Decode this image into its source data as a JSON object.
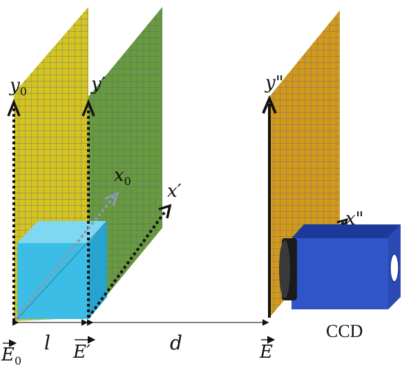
{
  "colors": {
    "plane_input": "#d6c41d",
    "plane_mid": "#6a9a3a",
    "plane_output": "#d49a17",
    "grid_line": "#3d5fb5",
    "cube_front": "#3bbde6",
    "cube_top": "#7fd8f2",
    "cube_side": "#27a3cf",
    "camera_body": "#2f55c7",
    "camera_dark": "#1d3a9a",
    "axis": "#111111"
  },
  "icons": {
    "beam_splitter": "cube-icon",
    "camera": "ccd-camera-icon"
  },
  "labels": {
    "y0": "y",
    "y0_sub": "0",
    "y_prime": "y′",
    "x0": "x",
    "x0_sub": "0",
    "x_prime": "x′",
    "y_dprime": "y\"",
    "x_dprime": "x\"",
    "E0": "E",
    "E0_sub": "0",
    "E_prime": "E′",
    "E": "E",
    "l": "l",
    "d": "d",
    "ccd": "CCD"
  }
}
